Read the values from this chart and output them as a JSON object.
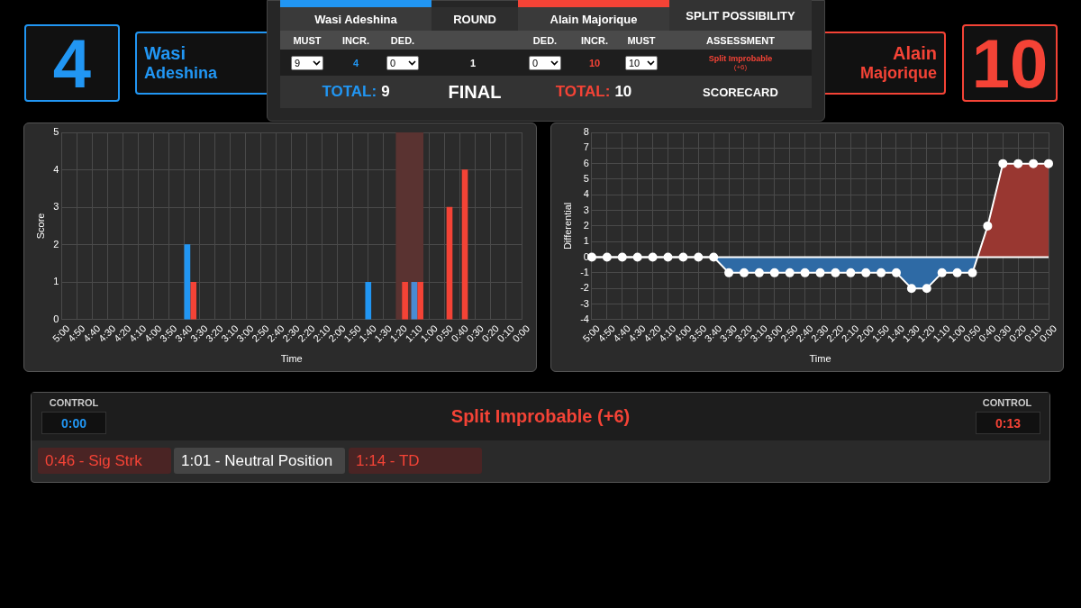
{
  "chart_data": [
    {
      "type": "other",
      "annotations": [
        "4",
        "Wasi",
        "Adeshina",
        "Wasi Adeshina",
        "ROUND",
        "Alain Majorique",
        "SPLIT POSSIBILITY",
        "MUST",
        "INCR.",
        "DED.",
        "DED.",
        "INCR.",
        "MUST",
        "ASSESSMENT",
        "9",
        "4",
        "0",
        "1",
        "0",
        "10",
        "10",
        "Split Improbable",
        "(+6)",
        "TOTAL:",
        "9",
        "FINAL",
        "TOTAL:",
        "10",
        "SCORECARD",
        "Alain",
        "Majorique",
        "10"
      ]
    },
    {
      "type": "bar",
      "xlabel": "Time",
      "ylabel": "Score",
      "xlim": [
        300,
        0
      ],
      "ylim": [
        0,
        5
      ],
      "yticks": [
        0,
        1,
        2,
        3,
        4,
        5
      ],
      "grid": true,
      "legend": false,
      "xticks": [
        {
          "value": 300,
          "label": "5:00"
        },
        {
          "value": 290,
          "label": "4:50"
        },
        {
          "value": 280,
          "label": "4:40"
        },
        {
          "value": 270,
          "label": "4:30"
        },
        {
          "value": 260,
          "label": "4:20"
        },
        {
          "value": 250,
          "label": "4:10"
        },
        {
          "value": 240,
          "label": "4:00"
        },
        {
          "value": 230,
          "label": "3:50"
        },
        {
          "value": 220,
          "label": "3:40"
        },
        {
          "value": 210,
          "label": "3:30"
        },
        {
          "value": 200,
          "label": "3:20"
        },
        {
          "value": 190,
          "label": "3:10"
        },
        {
          "value": 180,
          "label": "3:00"
        },
        {
          "value": 170,
          "label": "2:50"
        },
        {
          "value": 160,
          "label": "2:40"
        },
        {
          "value": 150,
          "label": "2:30"
        },
        {
          "value": 140,
          "label": "2:20"
        },
        {
          "value": 130,
          "label": "2:10"
        },
        {
          "value": 120,
          "label": "2:00"
        },
        {
          "value": 110,
          "label": "1:50"
        },
        {
          "value": 100,
          "label": "1:40"
        },
        {
          "value": 90,
          "label": "1:30"
        },
        {
          "value": 80,
          "label": "1:20"
        },
        {
          "value": 70,
          "label": "1:10"
        },
        {
          "value": 60,
          "label": "1:00"
        },
        {
          "value": 50,
          "label": "0:50"
        },
        {
          "value": 40,
          "label": "0:40"
        },
        {
          "value": 30,
          "label": "0:30"
        },
        {
          "value": 20,
          "label": "0:20"
        },
        {
          "value": 10,
          "label": "0:10"
        },
        {
          "value": 0,
          "label": "0:00"
        }
      ],
      "bands": [
        {
          "axis": "x",
          "from": 82,
          "to": 64,
          "color": "#5a3331"
        }
      ],
      "series": [
        {
          "colors": [
            "#2196f3",
            "#2196f3",
            "#4a8bd4"
          ],
          "x": [
            218,
            100,
            70
          ],
          "values": [
            2,
            1,
            1
          ]
        },
        {
          "color": "#f44336",
          "x": [
            214,
            76,
            66,
            47,
            37
          ],
          "values": [
            1,
            1,
            1,
            3,
            4
          ]
        }
      ]
    },
    {
      "type": "area",
      "xlabel": "Time",
      "ylabel": "Differential",
      "xlim": [
        300,
        0
      ],
      "ylim": [
        -4,
        8
      ],
      "yticks": [
        -4,
        -3,
        -2,
        -1,
        0,
        1,
        2,
        3,
        4,
        5,
        6,
        7,
        8
      ],
      "grid": true,
      "legend": false,
      "xticks": [
        {
          "value": 300,
          "label": "5:00"
        },
        {
          "value": 290,
          "label": "4:50"
        },
        {
          "value": 280,
          "label": "4:40"
        },
        {
          "value": 270,
          "label": "4:30"
        },
        {
          "value": 260,
          "label": "4:20"
        },
        {
          "value": 250,
          "label": "4:10"
        },
        {
          "value": 240,
          "label": "4:00"
        },
        {
          "value": 230,
          "label": "3:50"
        },
        {
          "value": 220,
          "label": "3:40"
        },
        {
          "value": 210,
          "label": "3:30"
        },
        {
          "value": 200,
          "label": "3:20"
        },
        {
          "value": 190,
          "label": "3:10"
        },
        {
          "value": 180,
          "label": "3:00"
        },
        {
          "value": 170,
          "label": "2:50"
        },
        {
          "value": 160,
          "label": "2:40"
        },
        {
          "value": 150,
          "label": "2:30"
        },
        {
          "value": 140,
          "label": "2:20"
        },
        {
          "value": 130,
          "label": "2:10"
        },
        {
          "value": 120,
          "label": "2:00"
        },
        {
          "value": 110,
          "label": "1:50"
        },
        {
          "value": 100,
          "label": "1:40"
        },
        {
          "value": 90,
          "label": "1:30"
        },
        {
          "value": 80,
          "label": "1:20"
        },
        {
          "value": 70,
          "label": "1:10"
        },
        {
          "value": 60,
          "label": "1:00"
        },
        {
          "value": 50,
          "label": "0:50"
        },
        {
          "value": 40,
          "label": "0:40"
        },
        {
          "value": 30,
          "label": "0:30"
        },
        {
          "value": 20,
          "label": "0:20"
        },
        {
          "value": 10,
          "label": "0:10"
        },
        {
          "value": 0,
          "label": "0:00"
        }
      ],
      "ref_lines": [
        {
          "axis": "y",
          "value": 0,
          "color": "#ffffff"
        }
      ],
      "series": [
        {
          "type": "area",
          "color": "#2e6aa5",
          "x": [
            300,
            290,
            280,
            270,
            260,
            250,
            240,
            230,
            220,
            210,
            200,
            190,
            180,
            170,
            160,
            150,
            140,
            130,
            120,
            110,
            100,
            90,
            80,
            70,
            60,
            50,
            46.67
          ],
          "values": [
            0,
            0,
            0,
            0,
            0,
            0,
            0,
            0,
            0,
            -1,
            -1,
            -1,
            -1,
            -1,
            -1,
            -1,
            -1,
            -1,
            -1,
            -1,
            -1,
            -2,
            -2,
            -1,
            -1,
            -1,
            0
          ]
        },
        {
          "type": "area",
          "color": "#993731",
          "x": [
            46.67,
            40,
            30,
            20,
            10,
            0
          ],
          "values": [
            0,
            2,
            6,
            6,
            6,
            6
          ]
        },
        {
          "type": "line",
          "color": "#ffffff",
          "marker": "circle",
          "x": [
            300,
            290,
            280,
            270,
            260,
            250,
            240,
            230,
            220,
            210,
            200,
            190,
            180,
            170,
            160,
            150,
            140,
            130,
            120,
            110,
            100,
            90,
            80,
            70,
            60,
            50,
            40,
            30,
            20,
            10,
            0
          ],
          "values": [
            0,
            0,
            0,
            0,
            0,
            0,
            0,
            0,
            0,
            -1,
            -1,
            -1,
            -1,
            -1,
            -1,
            -1,
            -1,
            -1,
            -1,
            -1,
            -1,
            -2,
            -2,
            -1,
            -1,
            -1,
            2,
            6,
            6,
            6,
            6
          ]
        }
      ]
    },
    {
      "type": "other",
      "annotations": [
        "CONTROL",
        "0:00",
        "Split Improbable (+6)",
        "CONTROL",
        "0:13",
        "0:46 - Sig Strk",
        "1:01 - Neutral Position",
        "1:14 - TD"
      ]
    }
  ]
}
